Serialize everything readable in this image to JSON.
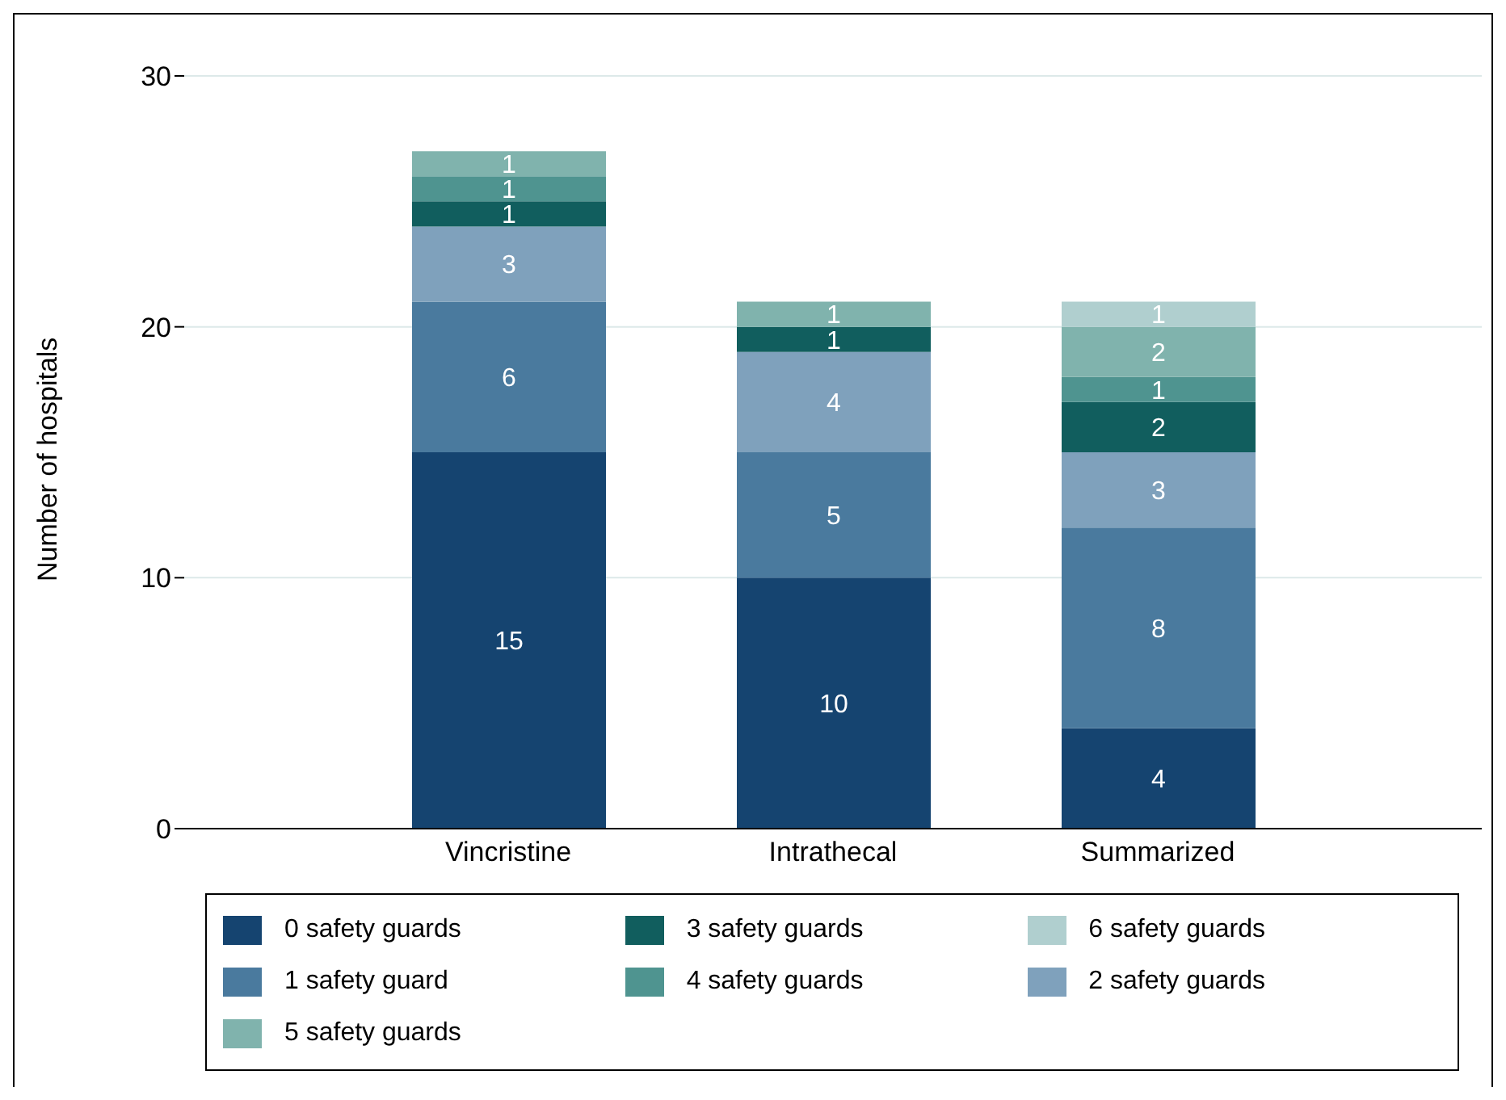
{
  "chart_data": {
    "type": "bar",
    "stacked": true,
    "ylabel": "Number of hospitals",
    "categories": [
      "Vincristine",
      "Intrathecal",
      "Summarized"
    ],
    "ylim": [
      0,
      30
    ],
    "yticks": [
      0,
      10,
      20,
      30
    ],
    "grid": "y",
    "legend": "bottom",
    "data_labels": true,
    "series": [
      {
        "name": "0 safety guards",
        "color": "#154470",
        "values": [
          15,
          10,
          4
        ]
      },
      {
        "name": "1 safety guard",
        "color": "#4a7a9e",
        "values": [
          6,
          5,
          8
        ]
      },
      {
        "name": "2 safety guards",
        "color": "#7fa1bc",
        "values": [
          3,
          4,
          3
        ]
      },
      {
        "name": "3 safety guards",
        "color": "#115e5e",
        "values": [
          1,
          1,
          2
        ]
      },
      {
        "name": "4 safety guards",
        "color": "#4f9490",
        "values": [
          1,
          null,
          1
        ]
      },
      {
        "name": "5 safety guards",
        "color": "#80b3ad",
        "values": [
          1,
          1,
          2
        ]
      },
      {
        "name": "6 safety guards",
        "color": "#b0cfcf",
        "values": [
          null,
          null,
          1
        ]
      }
    ]
  }
}
